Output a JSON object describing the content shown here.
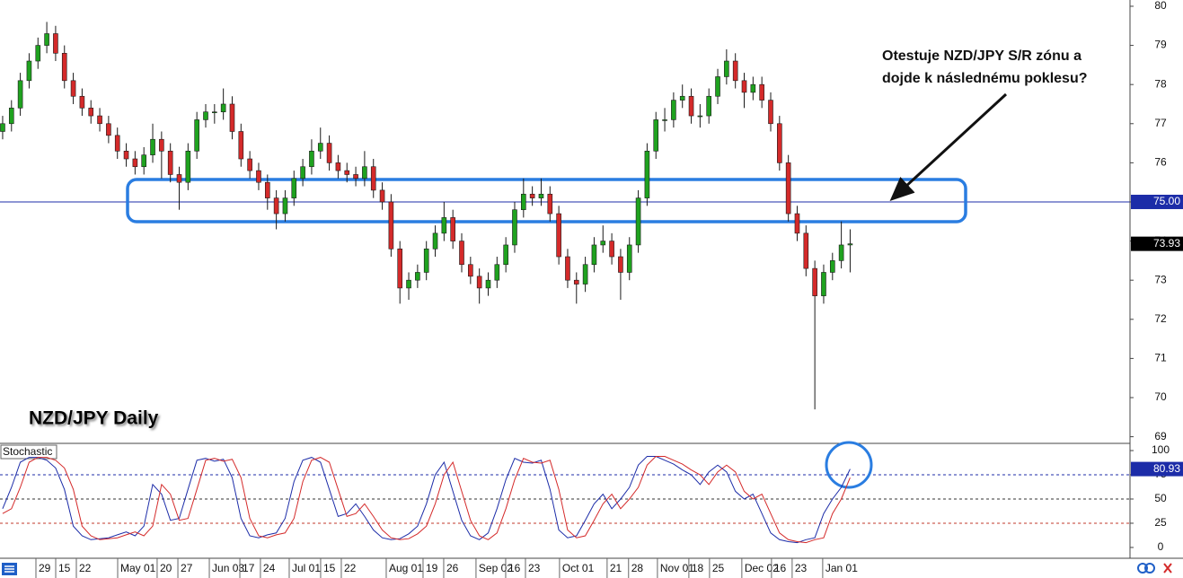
{
  "chart_data": {
    "type": "candlestick",
    "label": "NZD/JPY Daily",
    "annotation": [
      "Otestuje NZD/JPY S/R zónu a",
      "dojde k následnému poklesu?"
    ],
    "up_color": "#1fa21f",
    "down_color": "#d42a2a",
    "wick_color": "#1a1a1a",
    "xlim": [
      -0.3,
      127.7
    ],
    "xticks": [
      {
        "value": 3.77,
        "label": "29"
      },
      {
        "value": 6.01,
        "label": "15"
      },
      {
        "value": 8.35,
        "label": "22"
      },
      {
        "value": 13.03,
        "label": "May 01"
      },
      {
        "value": 17.5,
        "label": "20"
      },
      {
        "value": 19.85,
        "label": "27"
      },
      {
        "value": 23.41,
        "label": "Jun 03"
      },
      {
        "value": 26.87,
        "label": "17"
      },
      {
        "value": 29.2,
        "label": "24"
      },
      {
        "value": 32.46,
        "label": "Jul 01"
      },
      {
        "value": 36.02,
        "label": "15"
      },
      {
        "value": 38.36,
        "label": "22"
      },
      {
        "value": 43.45,
        "label": "Aug 01"
      },
      {
        "value": 47.62,
        "label": "19"
      },
      {
        "value": 49.96,
        "label": "26"
      },
      {
        "value": 53.62,
        "label": "Sep 02"
      },
      {
        "value": 56.98,
        "label": "16"
      },
      {
        "value": 59.22,
        "label": "23"
      },
      {
        "value": 63.08,
        "label": "Oct 01"
      },
      {
        "value": 68.47,
        "label": "21"
      },
      {
        "value": 70.9,
        "label": "28"
      },
      {
        "value": 74.17,
        "label": "Nov 01"
      },
      {
        "value": 77.73,
        "label": "18"
      },
      {
        "value": 80.07,
        "label": "25"
      },
      {
        "value": 83.73,
        "label": "Dec 02"
      },
      {
        "value": 87.09,
        "label": "16"
      },
      {
        "value": 89.43,
        "label": "23"
      },
      {
        "value": 92.89,
        "label": "Jan 01"
      }
    ],
    "ylim": [
      68.83,
      80.16
    ],
    "yticks": [
      69,
      70,
      71,
      72,
      73,
      74,
      75,
      76,
      77,
      78,
      79,
      80
    ],
    "hline": {
      "value": 75.0,
      "label": "75.00",
      "color": "#1c2ca8"
    },
    "last_price": {
      "value": 73.93,
      "label": "73.93"
    },
    "open": [
      76.8,
      77.0,
      77.4,
      78.1,
      78.6,
      79.0,
      79.3,
      78.8,
      78.1,
      77.7,
      77.4,
      77.2,
      77.0,
      76.7,
      76.3,
      76.1,
      75.9,
      76.2,
      76.6,
      76.3,
      75.7,
      75.5,
      76.3,
      77.1,
      77.3,
      77.3,
      77.5,
      76.8,
      76.1,
      75.8,
      75.5,
      75.1,
      74.7,
      75.1,
      75.6,
      75.9,
      76.3,
      76.5,
      76.0,
      75.8,
      75.7,
      75.6,
      75.9,
      75.3,
      75.0,
      73.8,
      72.8,
      73.0,
      73.2,
      73.8,
      74.2,
      74.6,
      74.0,
      73.4,
      73.1,
      72.8,
      73.0,
      73.4,
      73.9,
      74.8,
      75.2,
      75.1,
      75.2,
      74.7,
      73.6,
      73.0,
      72.9,
      73.4,
      73.9,
      74.0,
      73.6,
      73.2,
      73.9,
      75.1,
      76.3,
      77.1,
      77.1,
      77.6,
      77.7,
      77.2,
      77.2,
      77.7,
      78.2,
      78.6,
      78.1,
      77.8,
      78.0,
      77.6,
      77.0,
      76.0,
      74.7,
      74.2,
      73.3,
      72.6,
      73.2,
      73.5,
      73.9
    ],
    "high": [
      77.2,
      77.6,
      78.3,
      78.8,
      79.2,
      79.6,
      79.5,
      79.0,
      78.3,
      77.9,
      77.6,
      77.4,
      77.2,
      76.9,
      76.5,
      76.3,
      76.4,
      77.0,
      76.8,
      76.5,
      75.9,
      76.5,
      77.3,
      77.5,
      77.5,
      77.9,
      77.7,
      77.0,
      76.3,
      76.0,
      75.7,
      75.3,
      75.3,
      75.8,
      76.1,
      76.6,
      76.9,
      76.7,
      76.2,
      76.0,
      75.9,
      76.3,
      76.1,
      75.5,
      75.2,
      74.0,
      73.2,
      73.4,
      74.0,
      74.4,
      75.0,
      74.8,
      74.2,
      73.6,
      73.3,
      73.2,
      73.6,
      74.1,
      75.0,
      75.6,
      75.4,
      75.6,
      75.4,
      74.9,
      73.8,
      73.2,
      73.6,
      74.1,
      74.4,
      74.2,
      73.8,
      74.1,
      75.3,
      76.5,
      77.3,
      77.4,
      77.8,
      78.0,
      77.9,
      77.5,
      77.9,
      78.4,
      78.9,
      78.8,
      78.3,
      78.2,
      78.2,
      77.8,
      77.2,
      76.2,
      74.9,
      74.4,
      73.5,
      73.4,
      73.7,
      74.5,
      74.3
    ],
    "low": [
      76.6,
      76.8,
      77.2,
      77.9,
      78.4,
      78.8,
      78.6,
      77.9,
      77.5,
      77.2,
      77.0,
      76.8,
      76.5,
      76.1,
      75.9,
      75.7,
      75.7,
      76.0,
      75.6,
      75.5,
      74.8,
      75.3,
      76.1,
      76.9,
      77.0,
      77.1,
      76.6,
      75.9,
      75.6,
      75.3,
      74.8,
      74.3,
      74.5,
      74.9,
      75.4,
      75.7,
      76.1,
      75.8,
      75.6,
      75.5,
      75.4,
      75.4,
      75.1,
      74.8,
      73.6,
      72.4,
      72.5,
      72.8,
      73.0,
      73.6,
      74.0,
      73.8,
      73.2,
      72.9,
      72.4,
      72.6,
      72.8,
      73.2,
      73.7,
      74.6,
      74.9,
      74.9,
      74.5,
      73.4,
      72.8,
      72.4,
      72.7,
      73.2,
      73.7,
      73.4,
      72.5,
      73.0,
      73.7,
      74.9,
      76.1,
      76.8,
      76.9,
      77.4,
      77.0,
      76.9,
      77.0,
      77.5,
      78.0,
      77.9,
      77.4,
      77.6,
      77.4,
      76.8,
      75.8,
      74.5,
      74.0,
      73.1,
      69.7,
      72.4,
      73.0,
      73.3,
      73.2
    ],
    "close": [
      77.0,
      77.4,
      78.1,
      78.6,
      79.0,
      79.3,
      78.8,
      78.1,
      77.7,
      77.4,
      77.2,
      77.0,
      76.7,
      76.3,
      76.1,
      75.9,
      76.2,
      76.6,
      76.3,
      75.7,
      75.5,
      76.3,
      77.1,
      77.3,
      77.3,
      77.5,
      76.8,
      76.1,
      75.8,
      75.5,
      75.1,
      74.7,
      75.1,
      75.6,
      75.9,
      76.3,
      76.5,
      76.0,
      75.8,
      75.7,
      75.6,
      75.9,
      75.3,
      75.0,
      73.8,
      72.8,
      73.0,
      73.2,
      73.8,
      74.2,
      74.6,
      74.0,
      73.4,
      73.1,
      72.8,
      73.0,
      73.4,
      73.9,
      74.8,
      75.2,
      75.1,
      75.2,
      74.7,
      73.6,
      73.0,
      72.9,
      73.4,
      73.9,
      74.0,
      73.6,
      73.2,
      73.9,
      75.1,
      76.3,
      77.1,
      77.1,
      77.6,
      77.7,
      77.2,
      77.2,
      77.7,
      78.2,
      78.6,
      78.1,
      77.8,
      78.0,
      77.6,
      77.0,
      76.0,
      74.7,
      74.2,
      73.3,
      72.6,
      73.2,
      73.5,
      73.9,
      73.93
    ],
    "stochastic": {
      "title": "Stochastic",
      "ylim": [
        -9.3,
        106.5
      ],
      "yticks": [
        0,
        25,
        50,
        75,
        100
      ],
      "levels": [
        {
          "value": 75,
          "color": "#1c2ca8"
        },
        {
          "value": 50,
          "color": "#333333"
        },
        {
          "value": 25,
          "color": "#c0392b"
        }
      ],
      "last": {
        "value": 80.93,
        "label": "80.93"
      },
      "series": [
        {
          "color": "#1c2ca8",
          "values": [
            40,
            62,
            88,
            93,
            93,
            90,
            82,
            60,
            22,
            12,
            8,
            9,
            10,
            13,
            16,
            12,
            22,
            65,
            55,
            28,
            30,
            60,
            90,
            92,
            89,
            91,
            72,
            30,
            12,
            10,
            13,
            15,
            30,
            68,
            90,
            93,
            88,
            60,
            32,
            35,
            45,
            32,
            18,
            10,
            8,
            9,
            14,
            22,
            45,
            75,
            88,
            58,
            28,
            12,
            8,
            15,
            40,
            70,
            92,
            88,
            87,
            90,
            60,
            18,
            10,
            12,
            28,
            45,
            55,
            40,
            50,
            62,
            85,
            94,
            94,
            90,
            86,
            80,
            75,
            65,
            78,
            85,
            78,
            58,
            50,
            55,
            35,
            15,
            8,
            6,
            5,
            8,
            10,
            35,
            50,
            62,
            80.93
          ]
        },
        {
          "color": "#d42a2a",
          "values": [
            35,
            40,
            62,
            88,
            93,
            93,
            90,
            82,
            60,
            22,
            12,
            8,
            9,
            10,
            13,
            16,
            12,
            22,
            65,
            55,
            28,
            30,
            60,
            90,
            92,
            89,
            91,
            72,
            30,
            12,
            10,
            13,
            15,
            30,
            68,
            90,
            93,
            88,
            60,
            32,
            35,
            45,
            32,
            18,
            10,
            8,
            9,
            14,
            22,
            45,
            75,
            88,
            58,
            28,
            12,
            8,
            15,
            40,
            70,
            92,
            88,
            87,
            90,
            60,
            18,
            10,
            12,
            28,
            45,
            55,
            40,
            50,
            62,
            85,
            94,
            94,
            90,
            86,
            80,
            75,
            65,
            78,
            85,
            78,
            58,
            50,
            55,
            35,
            15,
            8,
            6,
            5,
            8,
            10,
            35,
            50,
            72
          ]
        }
      ]
    }
  }
}
